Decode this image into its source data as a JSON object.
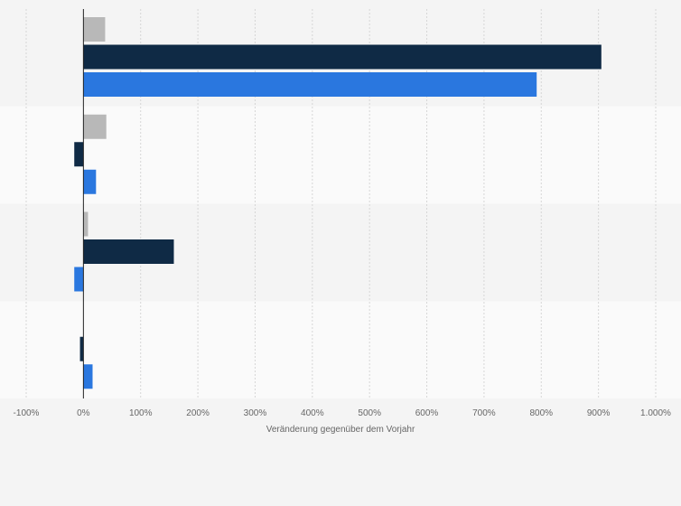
{
  "chart_data": {
    "type": "bar",
    "orientation": "horizontal",
    "title": "",
    "xlabel": "Veränderung gegenüber dem Vorjahr",
    "ylabel": "",
    "xlim": [
      -100,
      1000
    ],
    "x_ticks": [
      -100,
      0,
      100,
      200,
      300,
      400,
      500,
      600,
      700,
      800,
      900,
      1000
    ],
    "x_tick_labels": [
      "-100%",
      "0%",
      "100%",
      "200%",
      "300%",
      "400%",
      "500%",
      "600%",
      "700%",
      "800%",
      "900%",
      "1.000%"
    ],
    "grid": true,
    "legend": "none",
    "categories": [
      "",
      "",
      "",
      ""
    ],
    "series": [
      {
        "color": "#b8b8b8",
        "values": [
          38,
          40,
          8,
          0
        ]
      },
      {
        "color": "#0f2a45",
        "values": [
          905,
          -16,
          158,
          -6
        ]
      },
      {
        "color": "#2a77df",
        "values": [
          792,
          22,
          -16,
          16
        ]
      }
    ]
  }
}
